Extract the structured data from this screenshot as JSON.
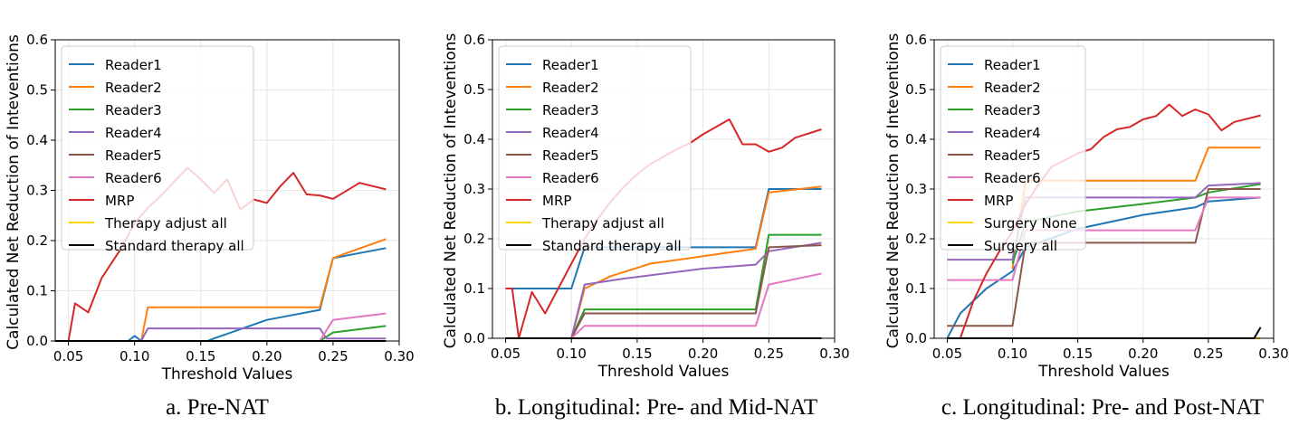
{
  "series_colors": {
    "Reader1": "#1f77b4",
    "Reader2": "#ff7f0e",
    "Reader3": "#2ca02c",
    "Reader4": "#9467bd",
    "Reader5": "#8c564b",
    "Reader6": "#e377c2",
    "MRP": "#d62728",
    "Therapy adjust all": "#ffd700",
    "Standard therapy all": "#000000",
    "Surgery None": "#ffd700",
    "Surgery all": "#000000"
  },
  "chart_data": [
    {
      "type": "line",
      "caption": "a. Pre-NAT",
      "xlabel": "Threshold Values",
      "ylabel": "Calculated Net Reduction of Inteventions",
      "xlim": [
        0.04,
        0.3
      ],
      "ylim": [
        0,
        0.6
      ],
      "xticks": [
        "0.05",
        "0.10",
        "0.15",
        "0.20",
        "0.25",
        "0.30"
      ],
      "yticks": [
        "0.0",
        "0.1",
        "0.2",
        "0.3",
        "0.4",
        "0.5",
        "0.6"
      ],
      "grid": true,
      "legend_position": "top-left",
      "series": [
        {
          "name": "Reader1",
          "points": [
            [
              0.04,
              0
            ],
            [
              0.095,
              0
            ],
            [
              0.1,
              0.01
            ],
            [
              0.105,
              0
            ],
            [
              0.155,
              0
            ],
            [
              0.16,
              0.005
            ],
            [
              0.2,
              0.042
            ],
            [
              0.24,
              0.062
            ],
            [
              0.25,
              0.165
            ],
            [
              0.29,
              0.185
            ]
          ]
        },
        {
          "name": "Reader2",
          "points": [
            [
              0.04,
              0
            ],
            [
              0.105,
              0
            ],
            [
              0.11,
              0.067
            ],
            [
              0.24,
              0.067
            ],
            [
              0.25,
              0.165
            ],
            [
              0.26,
              0.175
            ],
            [
              0.29,
              0.203
            ]
          ]
        },
        {
          "name": "Reader3",
          "points": [
            [
              0.04,
              0
            ],
            [
              0.24,
              0
            ],
            [
              0.25,
              0.017
            ],
            [
              0.29,
              0.03
            ]
          ]
        },
        {
          "name": "Reader4",
          "points": [
            [
              0.04,
              0
            ],
            [
              0.105,
              0
            ],
            [
              0.11,
              0.025
            ],
            [
              0.24,
              0.025
            ],
            [
              0.245,
              0.005
            ],
            [
              0.29,
              0.005
            ]
          ]
        },
        {
          "name": "Reader5",
          "points": [
            [
              0.04,
              0
            ],
            [
              0.29,
              0
            ]
          ]
        },
        {
          "name": "Reader6",
          "points": [
            [
              0.04,
              0
            ],
            [
              0.24,
              0
            ],
            [
              0.25,
              0.042
            ],
            [
              0.29,
              0.055
            ]
          ]
        },
        {
          "name": "MRP",
          "points": [
            [
              0.05,
              0
            ],
            [
              0.055,
              0.075
            ],
            [
              0.065,
              0.057
            ],
            [
              0.075,
              0.125
            ],
            [
              0.09,
              0.185
            ],
            [
              0.1,
              0.235
            ],
            [
              0.11,
              0.265
            ],
            [
              0.12,
              0.29
            ],
            [
              0.14,
              0.345
            ],
            [
              0.15,
              0.322
            ],
            [
              0.16,
              0.295
            ],
            [
              0.17,
              0.322
            ],
            [
              0.18,
              0.262
            ],
            [
              0.19,
              0.282
            ],
            [
              0.2,
              0.275
            ],
            [
              0.21,
              0.308
            ],
            [
              0.22,
              0.335
            ],
            [
              0.23,
              0.292
            ],
            [
              0.24,
              0.29
            ],
            [
              0.25,
              0.283
            ],
            [
              0.27,
              0.315
            ],
            [
              0.29,
              0.302
            ]
          ]
        },
        {
          "name": "Therapy adjust all",
          "points": [
            [
              0.04,
              0
            ],
            [
              0.29,
              0
            ]
          ]
        },
        {
          "name": "Standard therapy all",
          "points": [
            [
              0.04,
              0
            ],
            [
              0.29,
              0
            ]
          ]
        }
      ]
    },
    {
      "type": "line",
      "caption": "b. Longitudinal: Pre- and Mid-NAT",
      "xlabel": "Threshold Values",
      "ylabel": "Calculated Net Reduction of Inteventions",
      "xlim": [
        0.04,
        0.3
      ],
      "ylim": [
        0,
        0.6
      ],
      "xticks": [
        "0.05",
        "0.10",
        "0.15",
        "0.20",
        "0.25",
        "0.30"
      ],
      "yticks": [
        "0.0",
        "0.1",
        "0.2",
        "0.3",
        "0.4",
        "0.5",
        "0.6"
      ],
      "grid": true,
      "legend_position": "top-left",
      "series": [
        {
          "name": "Reader1",
          "points": [
            [
              0.05,
              0.1
            ],
            [
              0.1,
              0.1
            ],
            [
              0.11,
              0.183
            ],
            [
              0.24,
              0.183
            ],
            [
              0.25,
              0.3
            ],
            [
              0.29,
              0.3
            ]
          ]
        },
        {
          "name": "Reader2",
          "points": [
            [
              0.1,
              0
            ],
            [
              0.11,
              0.1
            ],
            [
              0.13,
              0.125
            ],
            [
              0.16,
              0.15
            ],
            [
              0.2,
              0.165
            ],
            [
              0.24,
              0.18
            ],
            [
              0.25,
              0.293
            ],
            [
              0.29,
              0.305
            ]
          ]
        },
        {
          "name": "Reader3",
          "points": [
            [
              0.1,
              0
            ],
            [
              0.11,
              0.058
            ],
            [
              0.24,
              0.058
            ],
            [
              0.25,
              0.208
            ],
            [
              0.29,
              0.208
            ]
          ]
        },
        {
          "name": "Reader4",
          "points": [
            [
              0.1,
              0
            ],
            [
              0.11,
              0.108
            ],
            [
              0.14,
              0.12
            ],
            [
              0.2,
              0.14
            ],
            [
              0.24,
              0.148
            ],
            [
              0.25,
              0.175
            ],
            [
              0.29,
              0.192
            ]
          ]
        },
        {
          "name": "Reader5",
          "points": [
            [
              0.1,
              0
            ],
            [
              0.11,
              0.05
            ],
            [
              0.24,
              0.05
            ],
            [
              0.25,
              0.183
            ],
            [
              0.29,
              0.187
            ]
          ]
        },
        {
          "name": "Reader6",
          "points": [
            [
              0.1,
              0
            ],
            [
              0.11,
              0.025
            ],
            [
              0.24,
              0.025
            ],
            [
              0.25,
              0.108
            ],
            [
              0.29,
              0.13
            ]
          ]
        },
        {
          "name": "MRP",
          "points": [
            [
              0.05,
              0.1
            ],
            [
              0.055,
              0.1
            ],
            [
              0.06,
              0
            ],
            [
              0.07,
              0.093
            ],
            [
              0.08,
              0.05
            ],
            [
              0.09,
              0.1
            ],
            [
              0.1,
              0.15
            ],
            [
              0.11,
              0.2
            ],
            [
              0.12,
              0.24
            ],
            [
              0.13,
              0.275
            ],
            [
              0.14,
              0.305
            ],
            [
              0.15,
              0.33
            ],
            [
              0.16,
              0.35
            ],
            [
              0.17,
              0.365
            ],
            [
              0.18,
              0.38
            ],
            [
              0.19,
              0.392
            ],
            [
              0.2,
              0.41
            ],
            [
              0.22,
              0.44
            ],
            [
              0.23,
              0.39
            ],
            [
              0.24,
              0.39
            ],
            [
              0.25,
              0.375
            ],
            [
              0.26,
              0.383
            ],
            [
              0.27,
              0.403
            ],
            [
              0.29,
              0.42
            ]
          ]
        },
        {
          "name": "Therapy adjust all",
          "points": [
            [
              0.05,
              0
            ],
            [
              0.29,
              0
            ]
          ]
        },
        {
          "name": "Standard therapy all",
          "points": [
            [
              0.05,
              0
            ],
            [
              0.29,
              0
            ]
          ]
        }
      ]
    },
    {
      "type": "line",
      "caption": "c. Longitudinal: Pre- and Post-NAT",
      "xlabel": "Threshold Values",
      "ylabel": "Calculated Net Reduction of Inteventions",
      "xlim": [
        0.04,
        0.3
      ],
      "ylim": [
        0,
        0.6
      ],
      "xticks": [
        "0.05",
        "0.10",
        "0.15",
        "0.20",
        "0.25",
        "0.30"
      ],
      "yticks": [
        "0.0",
        "0.1",
        "0.2",
        "0.3",
        "0.4",
        "0.5",
        "0.6"
      ],
      "grid": true,
      "legend_position": "top-left",
      "series": [
        {
          "name": "Reader1",
          "points": [
            [
              0.05,
              0
            ],
            [
              0.06,
              0.05
            ],
            [
              0.08,
              0.1
            ],
            [
              0.1,
              0.135
            ],
            [
              0.11,
              0.183
            ],
            [
              0.15,
              0.22
            ],
            [
              0.2,
              0.248
            ],
            [
              0.24,
              0.263
            ],
            [
              0.25,
              0.275
            ],
            [
              0.29,
              0.283
            ]
          ]
        },
        {
          "name": "Reader2",
          "points": [
            [
              0.1,
              0.14
            ],
            [
              0.11,
              0.317
            ],
            [
              0.24,
              0.317
            ],
            [
              0.25,
              0.383
            ],
            [
              0.29,
              0.383
            ]
          ]
        },
        {
          "name": "Reader3",
          "points": [
            [
              0.1,
              0.15
            ],
            [
              0.11,
              0.233
            ],
            [
              0.15,
              0.255
            ],
            [
              0.2,
              0.27
            ],
            [
              0.24,
              0.283
            ],
            [
              0.25,
              0.293
            ],
            [
              0.29,
              0.31
            ]
          ]
        },
        {
          "name": "Reader4",
          "points": [
            [
              0.05,
              0.158
            ],
            [
              0.1,
              0.158
            ],
            [
              0.11,
              0.283
            ],
            [
              0.24,
              0.283
            ],
            [
              0.25,
              0.307
            ],
            [
              0.29,
              0.312
            ]
          ]
        },
        {
          "name": "Reader5",
          "points": [
            [
              0.05,
              0.025
            ],
            [
              0.1,
              0.025
            ],
            [
              0.11,
              0.192
            ],
            [
              0.24,
              0.192
            ],
            [
              0.25,
              0.3
            ],
            [
              0.29,
              0.3
            ]
          ]
        },
        {
          "name": "Reader6",
          "points": [
            [
              0.05,
              0.117
            ],
            [
              0.1,
              0.117
            ],
            [
              0.11,
              0.217
            ],
            [
              0.24,
              0.217
            ],
            [
              0.25,
              0.283
            ],
            [
              0.29,
              0.283
            ]
          ]
        },
        {
          "name": "MRP",
          "points": [
            [
              0.06,
              0
            ],
            [
              0.07,
              0.075
            ],
            [
              0.08,
              0.13
            ],
            [
              0.09,
              0.175
            ],
            [
              0.1,
              0.215
            ],
            [
              0.11,
              0.27
            ],
            [
              0.12,
              0.31
            ],
            [
              0.13,
              0.345
            ],
            [
              0.14,
              0.358
            ],
            [
              0.15,
              0.372
            ],
            [
              0.16,
              0.38
            ],
            [
              0.17,
              0.405
            ],
            [
              0.18,
              0.42
            ],
            [
              0.19,
              0.425
            ],
            [
              0.2,
              0.44
            ],
            [
              0.21,
              0.447
            ],
            [
              0.22,
              0.47
            ],
            [
              0.23,
              0.447
            ],
            [
              0.24,
              0.46
            ],
            [
              0.25,
              0.45
            ],
            [
              0.26,
              0.418
            ],
            [
              0.27,
              0.435
            ],
            [
              0.29,
              0.448
            ]
          ]
        },
        {
          "name": "Surgery None",
          "points": [
            [
              0.05,
              0
            ],
            [
              0.29,
              0
            ]
          ]
        },
        {
          "name": "Surgery all",
          "points": [
            [
              0.05,
              0
            ],
            [
              0.285,
              0
            ],
            [
              0.29,
              0.022
            ]
          ]
        }
      ]
    }
  ]
}
